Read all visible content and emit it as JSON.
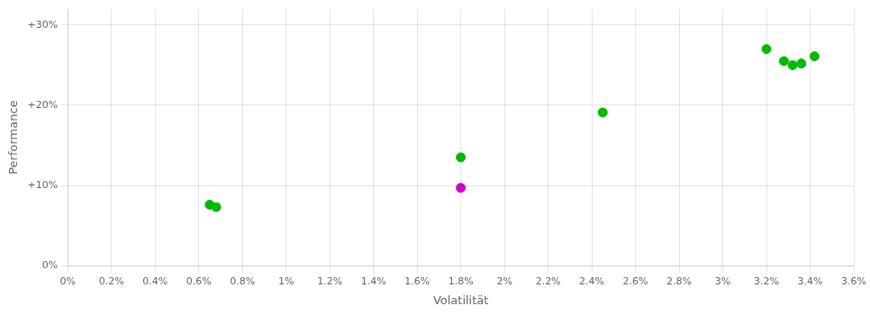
{
  "chart_data": {
    "type": "scatter",
    "xlabel": "Volatilität",
    "ylabel": "Performance",
    "series": [
      {
        "color": "#00bb00",
        "marker": "circle",
        "x": [
          0.0065,
          0.0068,
          0.018,
          0.0245,
          0.032,
          0.0328,
          0.0332,
          0.0336,
          0.0342
        ],
        "values": [
          0.076,
          0.073,
          0.135,
          0.191,
          0.27,
          0.255,
          0.25,
          0.252,
          0.261
        ]
      },
      {
        "color": "#cc00cc",
        "marker": "circle",
        "x": [
          0.018
        ],
        "values": [
          0.097
        ]
      }
    ],
    "xlim": [
      0.0,
      0.036
    ],
    "ylim": [
      0.0,
      0.32
    ],
    "xticks": [
      {
        "value": 0,
        "label": "0%"
      },
      {
        "value": 0.002,
        "label": "0.2%"
      },
      {
        "value": 0.004,
        "label": "0.4%"
      },
      {
        "value": 0.006,
        "label": "0.6%"
      },
      {
        "value": 0.008,
        "label": "0.8%"
      },
      {
        "value": 0.01,
        "label": "1%"
      },
      {
        "value": 0.012,
        "label": "1.2%"
      },
      {
        "value": 0.014,
        "label": "1.4%"
      },
      {
        "value": 0.016,
        "label": "1.6%"
      },
      {
        "value": 0.018,
        "label": "1.8%"
      },
      {
        "value": 0.02,
        "label": "2%"
      },
      {
        "value": 0.022,
        "label": "2.2%"
      },
      {
        "value": 0.024,
        "label": "2.4%"
      },
      {
        "value": 0.026,
        "label": "2.6%"
      },
      {
        "value": 0.028,
        "label": "2.8%"
      },
      {
        "value": 0.03,
        "label": "3%"
      },
      {
        "value": 0.032,
        "label": "3.2%"
      },
      {
        "value": 0.034,
        "label": "3.4%"
      },
      {
        "value": 0.036,
        "label": "3.6%"
      }
    ],
    "yticks": [
      {
        "value": 0.0,
        "label": "0%"
      },
      {
        "value": 0.1,
        "label": "+10%"
      },
      {
        "value": 0.2,
        "label": "+20%"
      },
      {
        "value": 0.3,
        "label": "+30%"
      }
    ],
    "grid": true
  }
}
